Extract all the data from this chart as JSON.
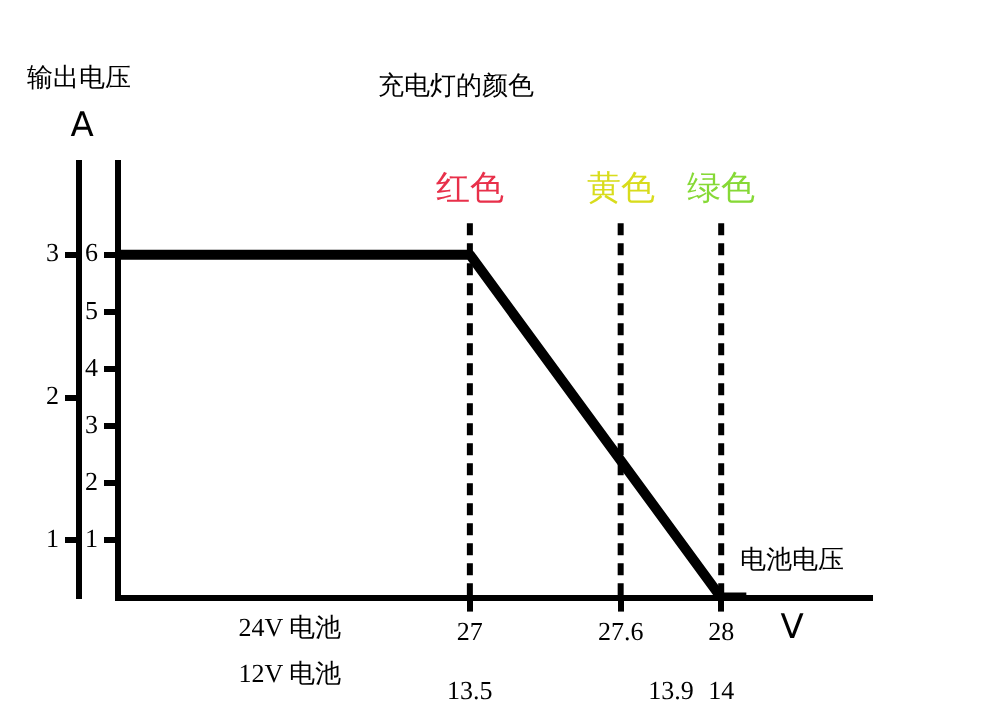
{
  "chart_data": {
    "type": "line",
    "title": "充电灯的颜色",
    "ylabel": "输出电压",
    "xlabel": "24V 电池",
    "x2label": "12V 电池",
    "annotations": [
      "电池电压",
      "V",
      "A"
    ],
    "x": [
      25.6,
      27,
      28,
      28.1
    ],
    "series": [
      {
        "color": "#000000",
        "values": [
          6,
          6,
          0,
          0
        ]
      }
    ],
    "xlim": [
      25.6,
      28.6
    ],
    "xticks": [
      27,
      27.6,
      28
    ],
    "x2lim": [
      12.8,
      14.3
    ],
    "x2ticks": [
      13.5,
      13.9,
      14
    ],
    "ylim": [
      0,
      7.6
    ],
    "yticks": [
      1,
      2,
      3,
      4,
      5,
      6
    ],
    "y2lim": [
      0.6,
      3.64
    ],
    "y2ticks": [
      1,
      2,
      3
    ],
    "ref_lines": [
      {
        "axis": "x",
        "value": 27,
        "label": "红色",
        "line_style": "dashed"
      },
      {
        "axis": "x",
        "value": 27.6,
        "label": "黄色",
        "line_style": "dashed"
      },
      {
        "axis": "x",
        "value": 28,
        "label": "绿色",
        "line_style": "dashed"
      }
    ],
    "grid": false,
    "legend": false,
    "marker": "none",
    "line_style": "solid"
  }
}
